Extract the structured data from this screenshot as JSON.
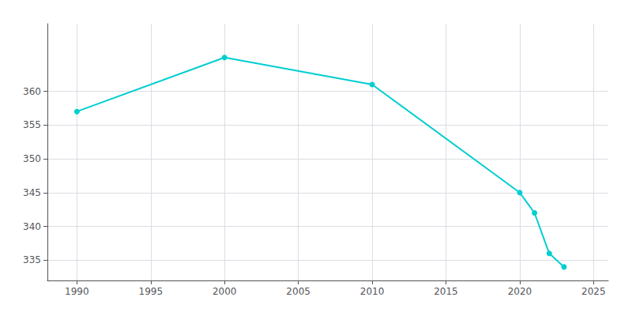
{
  "chart_data": {
    "type": "line",
    "x": [
      1990,
      2000,
      2010,
      2020,
      2021,
      2022,
      2023
    ],
    "values": [
      357,
      365,
      361,
      345,
      342,
      336,
      334
    ],
    "color": "#00CED1",
    "marker": "circle",
    "xlim": [
      1988,
      2026
    ],
    "xticks": [
      1990,
      1995,
      2000,
      2005,
      2010,
      2015,
      2020,
      2025
    ],
    "ylim": [
      332,
      370
    ],
    "yticks": [
      335,
      340,
      345,
      350,
      355,
      360
    ],
    "grid": true
  }
}
